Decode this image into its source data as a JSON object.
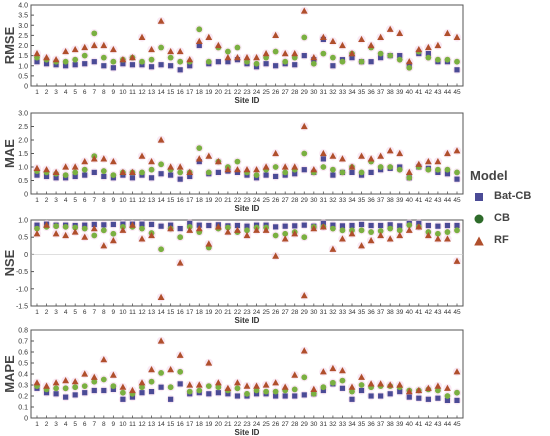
{
  "chart_data": {
    "type": "scatter",
    "x": [
      1,
      2,
      3,
      4,
      5,
      6,
      7,
      8,
      9,
      10,
      11,
      12,
      13,
      14,
      15,
      16,
      17,
      18,
      19,
      20,
      21,
      22,
      23,
      24,
      25,
      26,
      27,
      28,
      29,
      30,
      31,
      32,
      33,
      34,
      35,
      36,
      37,
      38,
      39,
      40,
      41,
      42,
      43,
      44,
      45
    ],
    "xlabel": "Site ID",
    "legend": {
      "title": "Model",
      "position": "right"
    },
    "colors": {
      "Bat-CB": "#4b4b96",
      "CB": "#7ab041",
      "RF": "#b04f2c",
      "ghost": "#f4d6e9"
    },
    "panels": [
      {
        "ylabel": "RMSE",
        "ylim": [
          0,
          4.0
        ],
        "yticks": [
          "0",
          "0.5",
          "1.0",
          "1.5",
          "2.0",
          "2.5",
          "3.0",
          "3.5",
          "4.0"
        ],
        "ytick_values": [
          0,
          0.5,
          1.0,
          1.5,
          2.0,
          2.5,
          3.0,
          3.5,
          4.0
        ],
        "series": [
          {
            "name": "Bat-CB",
            "marker": "square",
            "values": [
              1.2,
              1.1,
              1.05,
              1.0,
              1.05,
              1.1,
              1.2,
              1.0,
              0.9,
              1.1,
              1.05,
              1.05,
              0.95,
              1.05,
              1.0,
              0.8,
              1.0,
              2.0,
              1.1,
              1.2,
              1.2,
              1.3,
              1.1,
              0.95,
              1.1,
              1.0,
              1.1,
              1.05,
              1.5,
              1.3,
              2.3,
              1.0,
              1.3,
              1.4,
              1.2,
              1.2,
              1.4,
              1.5,
              1.5,
              1.05,
              1.6,
              1.6,
              1.2,
              1.2,
              0.8
            ]
          },
          {
            "name": "CB",
            "marker": "circle",
            "values": [
              1.4,
              1.3,
              1.2,
              1.2,
              1.3,
              1.5,
              2.6,
              1.4,
              1.2,
              1.3,
              1.4,
              1.2,
              1.3,
              1.9,
              1.4,
              1.2,
              1.2,
              2.8,
              1.2,
              1.9,
              1.7,
              1.9,
              1.2,
              1.1,
              1.4,
              1.7,
              1.2,
              1.4,
              2.4,
              1.1,
              1.6,
              1.4,
              1.2,
              1.6,
              1.2,
              1.9,
              1.6,
              1.5,
              1.3,
              0.9,
              1.7,
              1.4,
              1.3,
              1.3,
              1.2
            ]
          },
          {
            "name": "RF",
            "marker": "triangle",
            "values": [
              1.6,
              1.4,
              1.3,
              1.7,
              1.8,
              1.9,
              2.0,
              2.0,
              1.8,
              1.3,
              1.4,
              2.4,
              1.8,
              3.2,
              1.7,
              1.7,
              1.3,
              2.2,
              2.4,
              2.0,
              1.4,
              1.4,
              1.4,
              1.4,
              1.6,
              2.5,
              1.6,
              1.6,
              3.7,
              1.4,
              2.4,
              2.2,
              2.0,
              1.6,
              2.3,
              2.0,
              2.4,
              2.8,
              2.6,
              1.2,
              1.8,
              1.9,
              2.0,
              2.6,
              2.4
            ]
          }
        ]
      },
      {
        "ylabel": "MAE",
        "ylim": [
          0,
          3.0
        ],
        "yticks": [
          "0",
          "0.5",
          "1.0",
          "1.5",
          "2.0",
          "2.5",
          "3.0"
        ],
        "ytick_values": [
          0,
          0.5,
          1.0,
          1.5,
          2.0,
          2.5,
          3.0
        ],
        "series": [
          {
            "name": "Bat-CB",
            "marker": "square",
            "values": [
              0.7,
              0.65,
              0.6,
              0.6,
              0.65,
              0.7,
              0.8,
              0.65,
              0.6,
              0.7,
              0.6,
              0.7,
              0.6,
              0.75,
              0.7,
              0.55,
              0.65,
              1.2,
              0.75,
              0.8,
              0.85,
              0.8,
              0.7,
              0.6,
              0.7,
              0.65,
              0.7,
              0.75,
              0.9,
              0.8,
              1.3,
              0.7,
              0.8,
              0.8,
              0.7,
              0.8,
              0.9,
              0.95,
              1.0,
              0.6,
              1.0,
              0.95,
              0.8,
              0.75,
              0.55
            ]
          },
          {
            "name": "CB",
            "marker": "circle",
            "values": [
              0.85,
              0.8,
              0.75,
              0.7,
              0.8,
              0.9,
              1.4,
              0.85,
              0.7,
              0.8,
              0.8,
              0.8,
              0.9,
              1.1,
              0.9,
              0.8,
              0.8,
              1.7,
              0.8,
              1.2,
              1.0,
              1.2,
              0.8,
              0.7,
              0.9,
              1.0,
              0.8,
              0.9,
              1.5,
              0.8,
              1.0,
              0.9,
              0.8,
              1.0,
              0.8,
              1.2,
              1.0,
              1.0,
              0.9,
              0.6,
              1.0,
              0.9,
              0.9,
              0.9,
              0.8
            ]
          },
          {
            "name": "RF",
            "marker": "triangle",
            "values": [
              0.95,
              0.9,
              0.8,
              1.0,
              1.0,
              1.2,
              1.3,
              1.3,
              1.2,
              0.8,
              0.8,
              1.4,
              1.2,
              2.0,
              1.0,
              1.0,
              0.8,
              1.3,
              1.4,
              1.2,
              0.9,
              0.9,
              0.9,
              0.9,
              1.0,
              1.5,
              1.0,
              1.0,
              2.5,
              0.9,
              1.5,
              1.4,
              1.3,
              1.0,
              1.4,
              1.3,
              1.4,
              1.6,
              1.5,
              0.8,
              1.1,
              1.2,
              1.2,
              1.5,
              1.6
            ]
          }
        ]
      },
      {
        "ylabel": "NSE",
        "ylim": [
          -1.5,
          1.0
        ],
        "yticks": [
          "-1.5",
          "-1.0",
          "-0.5",
          "0",
          "0.5",
          "1.0"
        ],
        "ytick_values": [
          -1.5,
          -1.0,
          -0.5,
          0,
          0.5,
          1.0
        ],
        "series": [
          {
            "name": "Bat-CB",
            "marker": "square",
            "values": [
              0.85,
              0.88,
              0.85,
              0.85,
              0.84,
              0.85,
              0.87,
              0.86,
              0.87,
              0.88,
              0.88,
              0.88,
              0.87,
              0.82,
              0.85,
              0.75,
              0.9,
              0.85,
              0.84,
              0.86,
              0.83,
              0.84,
              0.82,
              0.85,
              0.85,
              0.8,
              0.82,
              0.83,
              0.85,
              0.82,
              0.9,
              0.85,
              0.83,
              0.84,
              0.87,
              0.84,
              0.84,
              0.86,
              0.83,
              0.9,
              0.9,
              0.84,
              0.82,
              0.84,
              0.84
            ]
          },
          {
            "name": "CB",
            "marker": "circle",
            "values": [
              0.75,
              0.8,
              0.82,
              0.8,
              0.78,
              0.75,
              0.55,
              0.7,
              0.6,
              0.8,
              0.8,
              0.75,
              0.62,
              0.15,
              0.75,
              0.5,
              0.8,
              0.65,
              0.2,
              0.75,
              0.78,
              0.65,
              0.7,
              0.78,
              0.78,
              0.55,
              0.6,
              0.65,
              0.5,
              0.8,
              0.8,
              0.75,
              0.7,
              0.7,
              0.7,
              0.65,
              0.68,
              0.75,
              0.7,
              0.85,
              0.8,
              0.65,
              0.6,
              0.65,
              0.7
            ]
          },
          {
            "name": "RF",
            "marker": "triangle",
            "values": [
              0.6,
              0.85,
              0.6,
              0.55,
              0.65,
              0.5,
              0.75,
              0.25,
              0.4,
              0.7,
              0.85,
              0.45,
              0.55,
              -1.25,
              0.75,
              -0.25,
              0.7,
              0.75,
              0.3,
              0.8,
              0.65,
              0.7,
              0.55,
              0.7,
              0.7,
              -0.05,
              0.45,
              0.6,
              -1.2,
              0.75,
              0.8,
              0.15,
              0.45,
              0.6,
              0.25,
              0.4,
              0.55,
              0.45,
              0.55,
              0.7,
              0.8,
              0.55,
              0.45,
              0.45,
              -0.2
            ]
          }
        ]
      },
      {
        "ylabel": "MAPE",
        "ylim": [
          0,
          0.8
        ],
        "yticks": [
          "0",
          "0.1",
          "0.2",
          "0.3",
          "0.4",
          "0.5",
          "0.6",
          "0.7",
          "0.8"
        ],
        "ytick_values": [
          0,
          0.1,
          0.2,
          0.3,
          0.4,
          0.5,
          0.6,
          0.7,
          0.8
        ],
        "series": [
          {
            "name": "Bat-CB",
            "marker": "square",
            "values": [
              0.27,
              0.23,
              0.22,
              0.19,
              0.21,
              0.23,
              0.25,
              0.25,
              0.26,
              0.17,
              0.19,
              0.23,
              0.24,
              0.28,
              0.17,
              0.31,
              0.22,
              0.23,
              0.22,
              0.23,
              0.22,
              0.2,
              0.2,
              0.22,
              0.22,
              0.2,
              0.2,
              0.2,
              0.21,
              0.22,
              0.25,
              0.31,
              0.27,
              0.17,
              0.25,
              0.2,
              0.2,
              0.22,
              0.24,
              0.19,
              0.18,
              0.17,
              0.18,
              0.16,
              0.16
            ]
          },
          {
            "name": "CB",
            "marker": "circle",
            "values": [
              0.29,
              0.26,
              0.27,
              0.27,
              0.28,
              0.29,
              0.33,
              0.35,
              0.29,
              0.23,
              0.22,
              0.28,
              0.33,
              0.41,
              0.28,
              0.42,
              0.24,
              0.25,
              0.29,
              0.28,
              0.25,
              0.27,
              0.22,
              0.25,
              0.24,
              0.24,
              0.25,
              0.26,
              0.37,
              0.22,
              0.28,
              0.32,
              0.34,
              0.24,
              0.3,
              0.28,
              0.29,
              0.29,
              0.28,
              0.25,
              0.25,
              0.26,
              0.25,
              0.2,
              0.23
            ]
          },
          {
            "name": "RF",
            "marker": "triangle",
            "values": [
              0.32,
              0.29,
              0.32,
              0.34,
              0.33,
              0.4,
              0.37,
              0.53,
              0.39,
              0.28,
              0.25,
              0.32,
              0.44,
              0.7,
              0.44,
              0.57,
              0.3,
              0.3,
              0.5,
              0.32,
              0.27,
              0.32,
              0.29,
              0.29,
              0.3,
              0.32,
              0.28,
              0.39,
              0.61,
              0.26,
              0.42,
              0.45,
              0.43,
              0.28,
              0.37,
              0.31,
              0.31,
              0.3,
              0.3,
              0.24,
              0.25,
              0.27,
              0.29,
              0.27,
              0.42
            ]
          }
        ]
      }
    ]
  }
}
